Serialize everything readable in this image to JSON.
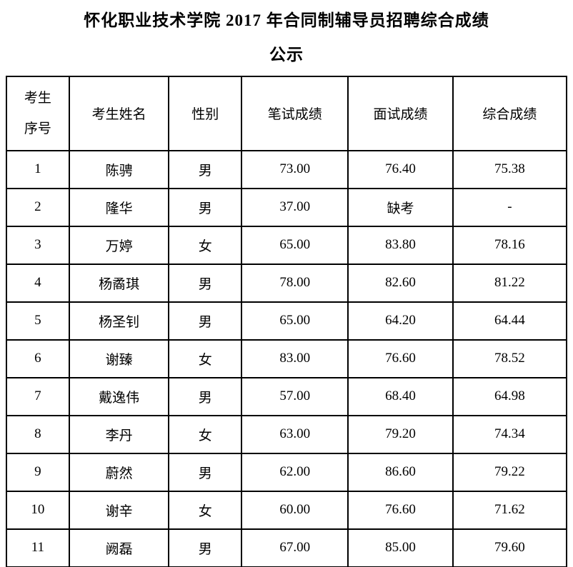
{
  "page": {
    "title_line1": "怀化职业技术学院 2017 年合同制辅导员招聘综合成绩",
    "title_line2": "公示",
    "colors": {
      "background": "#ffffff",
      "text": "#000000",
      "table_border": "#000000"
    }
  },
  "table": {
    "header": {
      "col1_line1": "考生",
      "col1_line2": "序号",
      "col2": "考生姓名",
      "col3": "性别",
      "col4": "笔试成绩",
      "col5": "面试成绩",
      "col6": "综合成绩"
    },
    "rows": [
      {
        "no": "1",
        "name": "陈骋",
        "gender": "男",
        "written": "73.00",
        "interview": "76.40",
        "overall": "75.38"
      },
      {
        "no": "2",
        "name": "隆华",
        "gender": "男",
        "written": "37.00",
        "interview": "缺考",
        "overall": "-"
      },
      {
        "no": "3",
        "name": "万婷",
        "gender": "女",
        "written": "65.00",
        "interview": "83.80",
        "overall": "78.16"
      },
      {
        "no": "4",
        "name": "杨矞琪",
        "gender": "男",
        "written": "78.00",
        "interview": "82.60",
        "overall": "81.22"
      },
      {
        "no": "5",
        "name": "杨圣钊",
        "gender": "男",
        "written": "65.00",
        "interview": "64.20",
        "overall": "64.44"
      },
      {
        "no": "6",
        "name": "谢臻",
        "gender": "女",
        "written": "83.00",
        "interview": "76.60",
        "overall": "78.52"
      },
      {
        "no": "7",
        "name": "戴逸伟",
        "gender": "男",
        "written": "57.00",
        "interview": "68.40",
        "overall": "64.98"
      },
      {
        "no": "8",
        "name": "李丹",
        "gender": "女",
        "written": "63.00",
        "interview": "79.20",
        "overall": "74.34"
      },
      {
        "no": "9",
        "name": "蔚然",
        "gender": "男",
        "written": "62.00",
        "interview": "86.60",
        "overall": "79.22"
      },
      {
        "no": "10",
        "name": "谢辛",
        "gender": "女",
        "written": "60.00",
        "interview": "76.60",
        "overall": "71.62"
      },
      {
        "no": "11",
        "name": "阙磊",
        "gender": "男",
        "written": "67.00",
        "interview": "85.00",
        "overall": "79.60"
      }
    ]
  }
}
